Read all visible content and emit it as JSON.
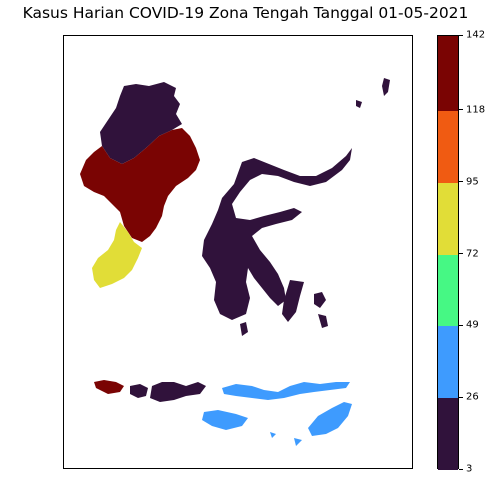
{
  "title": "Kasus Harian COVID-19 Zona Tengah Tanggal 01-05-2021",
  "colorbar": {
    "min": 3,
    "max": 142,
    "ticks": [
      "3",
      "26",
      "49",
      "72",
      "95",
      "118",
      "142"
    ],
    "bins": [
      {
        "from": 3,
        "to": 26,
        "color": "#30123b"
      },
      {
        "from": 26,
        "to": 49,
        "color": "#3e9bfe"
      },
      {
        "from": 49,
        "to": 72,
        "color": "#46f884"
      },
      {
        "from": 72,
        "to": 95,
        "color": "#e1dd37"
      },
      {
        "from": 95,
        "to": 118,
        "color": "#f05b12"
      },
      {
        "from": 118,
        "to": 142,
        "color": "#7a0403"
      }
    ]
  },
  "regions": [
    {
      "name": "North Kalimantan",
      "category": "3-26",
      "color": "#30123b"
    },
    {
      "name": "East Kalimantan",
      "category": "118-142",
      "color": "#7a0403"
    },
    {
      "name": "West Kalimantan area",
      "category": "118-142",
      "color": "#7a0403"
    },
    {
      "name": "South Kalimantan",
      "category": "72-95",
      "color": "#e1dd37"
    },
    {
      "name": "Sulawesi",
      "category": "3-26",
      "color": "#30123b"
    },
    {
      "name": "Bali",
      "category": "118-142",
      "color": "#7a0403"
    },
    {
      "name": "West Nusa Tenggara",
      "category": "3-26",
      "color": "#30123b"
    },
    {
      "name": "East Nusa Tenggara",
      "category": "26-49",
      "color": "#3e9bfe"
    }
  ]
}
